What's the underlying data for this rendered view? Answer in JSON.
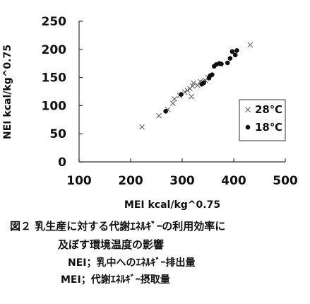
{
  "chart_data": {
    "type": "scatter",
    "title": "",
    "xlabel": "MEI kcal/kg^0.75",
    "ylabel": "NEI kcal/kg^0.75",
    "xlim": [
      100,
      500
    ],
    "ylim": [
      0,
      250
    ],
    "x_ticks": [
      "100",
      "200",
      "300",
      "400",
      "500"
    ],
    "y_ticks": [
      "0",
      "50",
      "100",
      "150",
      "200",
      "250"
    ],
    "grid": false,
    "legend_position": "right",
    "series": [
      {
        "name": "28℃",
        "marker": "x",
        "color": "#555555",
        "points": [
          [
            222,
            62
          ],
          [
            255,
            82
          ],
          [
            272,
            93
          ],
          [
            282,
            104
          ],
          [
            285,
            112
          ],
          [
            295,
            118
          ],
          [
            305,
            124
          ],
          [
            310,
            127
          ],
          [
            315,
            130
          ],
          [
            318,
            116
          ],
          [
            320,
            135
          ],
          [
            322,
            140
          ],
          [
            330,
            136
          ],
          [
            335,
            143
          ],
          [
            340,
            141
          ],
          [
            345,
            145
          ],
          [
            350,
            150
          ],
          [
            432,
            208
          ]
        ]
      },
      {
        "name": "18℃",
        "marker": "dot",
        "color": "#111111",
        "points": [
          [
            268,
            90
          ],
          [
            298,
            120
          ],
          [
            338,
            138
          ],
          [
            342,
            141
          ],
          [
            352,
            149
          ],
          [
            354,
            153
          ],
          [
            358,
            155
          ],
          [
            362,
            170
          ],
          [
            366,
            173
          ],
          [
            372,
            175
          ],
          [
            376,
            174
          ],
          [
            388,
            176
          ],
          [
            393,
            184
          ],
          [
            397,
            196
          ],
          [
            403,
            190
          ],
          [
            406,
            198
          ]
        ]
      }
    ]
  },
  "caption": {
    "line1": "図２ 乳生産に対する代謝ｴﾈﾙｷﾞｰの利用効率に",
    "line2": "及ぼす環境温度の影響",
    "line3": "NEI；乳中へのｴﾈﾙｷﾞｰ排出量",
    "line4": "MEI；代謝ｴﾈﾙｷﾞｰ摂取量"
  }
}
